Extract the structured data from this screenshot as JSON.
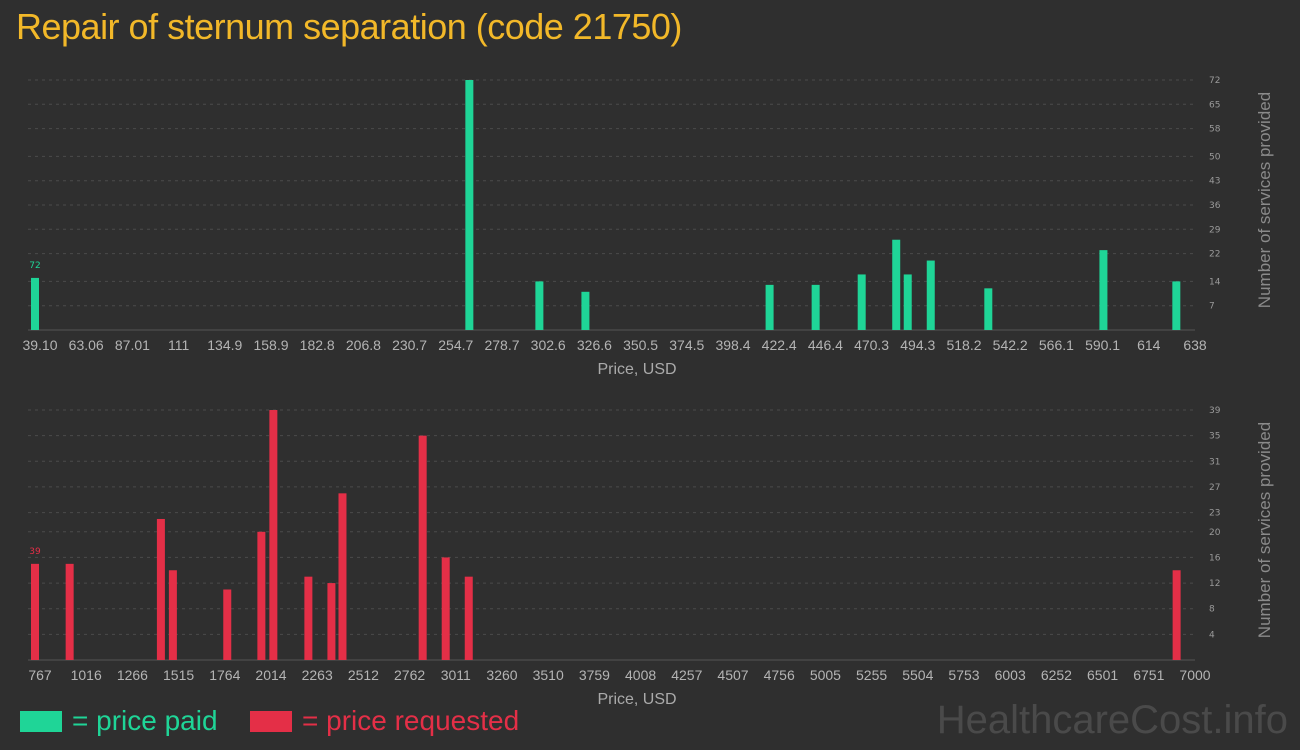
{
  "title": "Repair of sternum separation (code 21750)",
  "colors": {
    "paid": "#1fd597",
    "requested": "#e42f47",
    "title": "#f2b829",
    "grid": "#4b4b4b"
  },
  "chart_data": [
    {
      "type": "bar",
      "name": "price paid",
      "x_min": 39.1,
      "x_max": 638,
      "x_ticks": [
        "39.10",
        "63.06",
        "87.01",
        "111",
        "134.9",
        "158.9",
        "182.8",
        "206.8",
        "230.7",
        "254.7",
        "278.7",
        "302.6",
        "326.6",
        "350.5",
        "374.5",
        "398.4",
        "422.4",
        "446.4",
        "470.3",
        "494.3",
        "518.2",
        "542.2",
        "566.1",
        "590.1",
        "614",
        "638"
      ],
      "y_ticks": [
        7,
        14,
        22,
        29,
        36,
        43,
        50,
        58,
        65,
        72
      ],
      "ylim": [
        0,
        72
      ],
      "xlabel": "Price, USD",
      "ylabel": "Number of services provided",
      "max_label": "72",
      "bars": [
        {
          "x": 39.1,
          "y": 15
        },
        {
          "x": 265.5,
          "y": 72
        },
        {
          "x": 302.0,
          "y": 14
        },
        {
          "x": 326.0,
          "y": 11
        },
        {
          "x": 422.0,
          "y": 13
        },
        {
          "x": 446.0,
          "y": 13
        },
        {
          "x": 470.0,
          "y": 16
        },
        {
          "x": 488.0,
          "y": 26
        },
        {
          "x": 494.0,
          "y": 16
        },
        {
          "x": 506.0,
          "y": 20
        },
        {
          "x": 536.0,
          "y": 12
        },
        {
          "x": 596.0,
          "y": 23
        },
        {
          "x": 634.0,
          "y": 14
        }
      ]
    },
    {
      "type": "bar",
      "name": "price requested",
      "x_min": 767,
      "x_max": 7000,
      "x_ticks": [
        "767",
        "1016",
        "1266",
        "1515",
        "1764",
        "2014",
        "2263",
        "2512",
        "2762",
        "3011",
        "3260",
        "3510",
        "3759",
        "4008",
        "4257",
        "4507",
        "4756",
        "5005",
        "5255",
        "5504",
        "5753",
        "6003",
        "6252",
        "6501",
        "6751",
        "7000"
      ],
      "y_ticks": [
        4,
        8,
        12,
        16,
        20,
        23,
        27,
        31,
        35,
        39
      ],
      "ylim": [
        0,
        39
      ],
      "xlabel": "Price, USD",
      "ylabel": "Number of services provided",
      "max_label": "39",
      "bars": [
        {
          "x": 767,
          "y": 15
        },
        {
          "x": 955,
          "y": 15
        },
        {
          "x": 1450,
          "y": 22
        },
        {
          "x": 1515,
          "y": 14
        },
        {
          "x": 1810,
          "y": 11
        },
        {
          "x": 1995,
          "y": 20
        },
        {
          "x": 2060,
          "y": 39
        },
        {
          "x": 2250,
          "y": 13
        },
        {
          "x": 2375,
          "y": 12
        },
        {
          "x": 2435,
          "y": 26
        },
        {
          "x": 2870,
          "y": 35
        },
        {
          "x": 2995,
          "y": 16
        },
        {
          "x": 3120,
          "y": 13
        },
        {
          "x": 6960,
          "y": 14
        }
      ]
    }
  ],
  "legend": {
    "paid": "= price paid",
    "requested": "= price requested"
  },
  "brand": "HealthcareCost.info"
}
